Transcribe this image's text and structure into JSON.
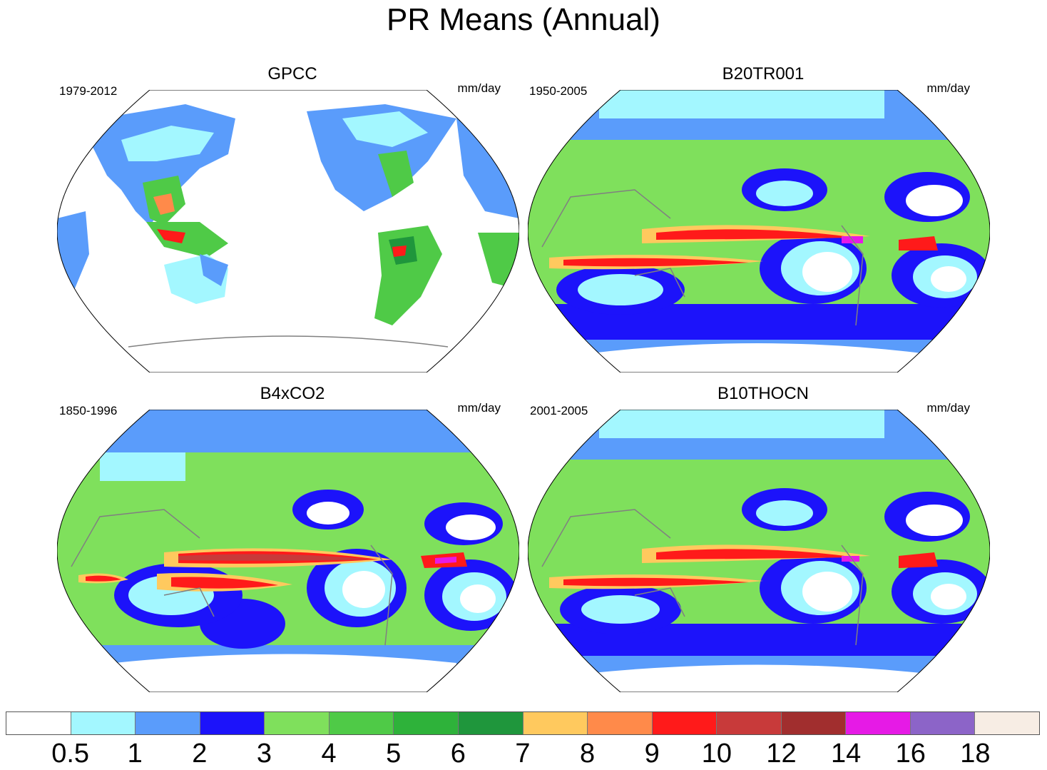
{
  "title": "PR Means (Annual)",
  "panels": [
    {
      "name": "GPCC",
      "period": "1979-2012",
      "units": "mm/day"
    },
    {
      "name": "B20TR001",
      "period": "1950-2005",
      "units": "mm/day"
    },
    {
      "name": "B4xCO2",
      "period": "1850-1996",
      "units": "mm/day"
    },
    {
      "name": "B10THOCN",
      "period": "2001-2005",
      "units": "mm/day"
    }
  ],
  "colorbar": {
    "labels": [
      "0.5",
      "1",
      "2",
      "3",
      "4",
      "5",
      "6",
      "7",
      "8",
      "9",
      "10",
      "12",
      "14",
      "16",
      "18"
    ],
    "colors": [
      "#ffffff",
      "#a3f7ff",
      "#5a9cfb",
      "#1c13fa",
      "#7fe05c",
      "#4fca47",
      "#2eb23a",
      "#1f963c",
      "#ffc95e",
      "#ff8a4a",
      "#ff1a1a",
      "#c83a3a",
      "#a12e2e",
      "#e61ae6",
      "#8c64c8",
      "#f7ede4"
    ]
  },
  "palette": {
    "land_outline": "#808080",
    "map_border": "#000000"
  }
}
